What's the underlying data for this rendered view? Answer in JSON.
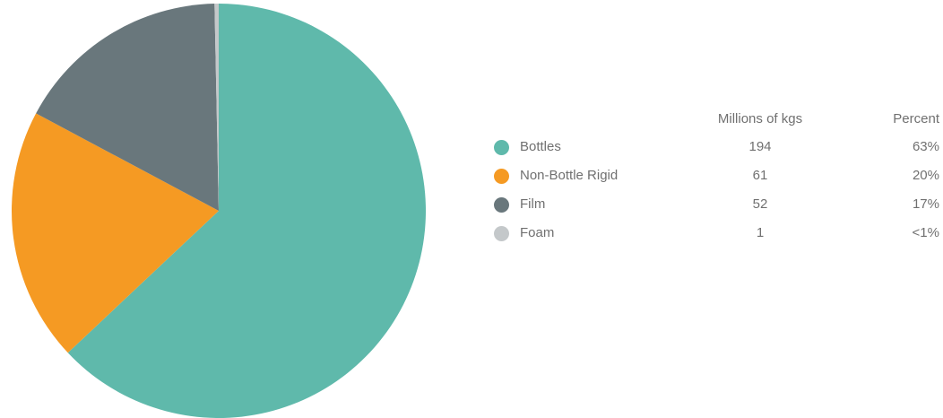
{
  "chart_data": {
    "type": "pie",
    "value_column_label": "Millions of kgs",
    "percent_column_label": "Percent",
    "slices": [
      {
        "label": "Bottles",
        "value": 194,
        "percent_label": "63%",
        "color": "#5fb9ab"
      },
      {
        "label": "Non-Bottle Rigid",
        "value": 61,
        "percent_label": "20%",
        "color": "#f59a23"
      },
      {
        "label": "Film",
        "value": 52,
        "percent_label": "17%",
        "color": "#69777c"
      },
      {
        "label": "Foam",
        "value": 1,
        "percent_label": "<1%",
        "color": "#c4c8ca"
      }
    ]
  }
}
